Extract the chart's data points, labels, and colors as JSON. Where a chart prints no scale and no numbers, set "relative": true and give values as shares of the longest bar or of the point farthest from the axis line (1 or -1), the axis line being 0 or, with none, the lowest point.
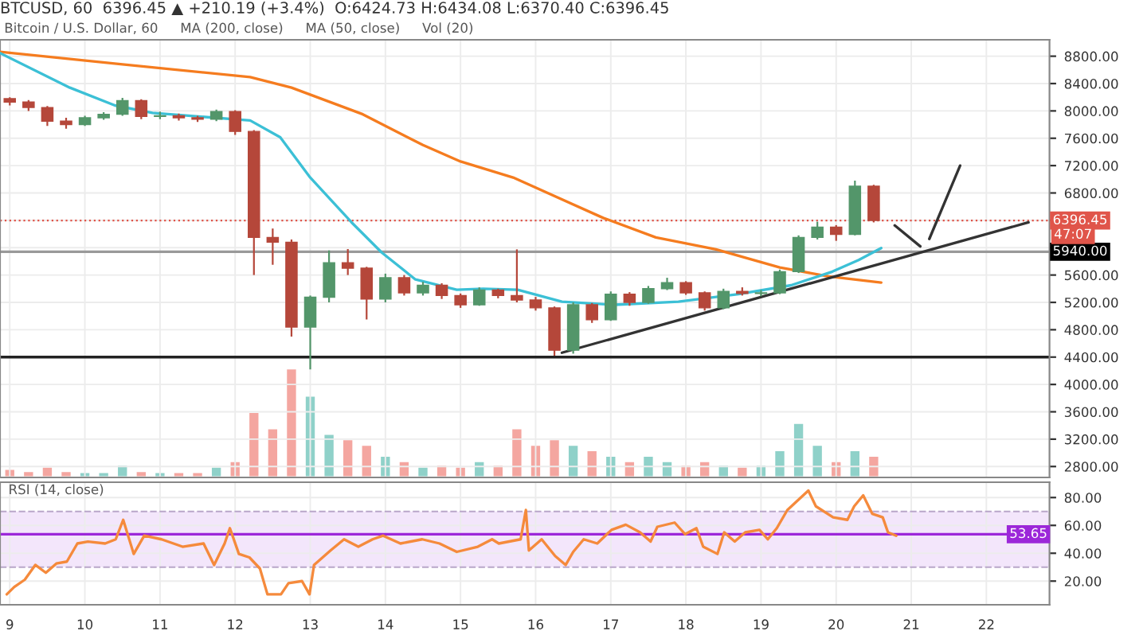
{
  "chart_data": [
    {
      "type": "candlestick",
      "title": "BTCUSD, 60  6396.45 ▲ +210.19 (+3.4%)  O:6424.73 H:6434.08 L:6370.40 C:6396.45",
      "annotations": [
        "Bitcoin / U.S. Dollar, 60",
        "MA (200, close)",
        "MA (50, close)",
        "Vol (20)",
        {
          "text": "47:07",
          "x": 22.84,
          "y": 6396.45
        }
      ],
      "x": [
        9.0,
        9.25,
        9.5,
        9.75,
        10.0,
        10.25,
        10.5,
        10.75,
        11.0,
        11.25,
        11.5,
        11.75,
        12.0,
        12.25,
        12.5,
        12.75,
        13.0,
        13.25,
        13.5,
        13.75,
        14.0,
        14.25,
        14.5,
        14.75,
        15.0,
        15.25,
        15.5,
        15.75,
        16.0,
        16.25,
        16.5,
        16.75,
        17.0,
        17.25,
        17.5,
        17.75,
        18.0,
        18.25,
        18.5,
        18.75,
        19.0,
        19.25,
        19.5,
        19.75,
        20.0,
        20.25,
        20.5
      ],
      "ohlc": [
        [
          8180,
          8200,
          8080,
          8130
        ],
        [
          8130,
          8160,
          8000,
          8050
        ],
        [
          8050,
          8070,
          7780,
          7850
        ],
        [
          7850,
          7900,
          7740,
          7800
        ],
        [
          7800,
          7930,
          7780,
          7900
        ],
        [
          7900,
          7980,
          7870,
          7950
        ],
        [
          7950,
          8190,
          7930,
          8150
        ],
        [
          8150,
          8170,
          7880,
          7920
        ],
        [
          7920,
          7990,
          7880,
          7930
        ],
        [
          7930,
          7960,
          7860,
          7900
        ],
        [
          7900,
          7930,
          7840,
          7880
        ],
        [
          7880,
          8020,
          7850,
          7990
        ],
        [
          7990,
          8010,
          7650,
          7700
        ],
        [
          7700,
          7720,
          5600,
          6150
        ],
        [
          6150,
          6280,
          5750,
          6080
        ],
        [
          6080,
          6120,
          4700,
          4840
        ],
        [
          4840,
          5300,
          4220,
          5275
        ],
        [
          5275,
          5960,
          5200,
          5780
        ],
        [
          5780,
          5980,
          5600,
          5700
        ],
        [
          5700,
          5720,
          4950,
          5250
        ],
        [
          5250,
          5620,
          5200,
          5560
        ],
        [
          5560,
          5600,
          5300,
          5340
        ],
        [
          5340,
          5500,
          5300,
          5450
        ],
        [
          5450,
          5480,
          5250,
          5300
        ],
        [
          5300,
          5330,
          5120,
          5165
        ],
        [
          5165,
          5420,
          5150,
          5380
        ],
        [
          5380,
          5400,
          5260,
          5300
        ],
        [
          5300,
          5975,
          5200,
          5235
        ],
        [
          5235,
          5280,
          5080,
          5120
        ],
        [
          5120,
          5140,
          4420,
          4500
        ],
        [
          4500,
          5200,
          4450,
          5165
        ],
        [
          5165,
          5190,
          4900,
          4945
        ],
        [
          4945,
          5360,
          4930,
          5320
        ],
        [
          5320,
          5350,
          5150,
          5200
        ],
        [
          5200,
          5440,
          5180,
          5400
        ],
        [
          5400,
          5560,
          5380,
          5490
        ],
        [
          5490,
          5510,
          5310,
          5340
        ],
        [
          5340,
          5360,
          5080,
          5120
        ],
        [
          5120,
          5400,
          5100,
          5360
        ],
        [
          5360,
          5420,
          5300,
          5330
        ],
        [
          5330,
          5380,
          5290,
          5340
        ],
        [
          5340,
          5680,
          5320,
          5650
        ],
        [
          5650,
          6180,
          5630,
          6150
        ],
        [
          6150,
          6380,
          6120,
          6300
        ],
        [
          6300,
          6330,
          6100,
          6195
        ],
        [
          6195,
          6980,
          6180,
          6900
        ],
        [
          6900,
          6920,
          6370,
          6396.45
        ]
      ],
      "colors": [
        "#b5473a",
        "#b5473a",
        "#b5473a",
        "#b5473a",
        "#53966a",
        "#53966a",
        "#53966a",
        "#b5473a",
        "#53966a",
        "#b5473a",
        "#b5473a",
        "#53966a",
        "#b5473a",
        "#b5473a",
        "#b5473a",
        "#b5473a",
        "#53966a",
        "#53966a",
        "#b5473a",
        "#b5473a",
        "#53966a",
        "#b5473a",
        "#53966a",
        "#b5473a",
        "#b5473a",
        "#53966a",
        "#b5473a",
        "#b5473a",
        "#b5473a",
        "#b5473a",
        "#53966a",
        "#b5473a",
        "#53966a",
        "#b5473a",
        "#53966a",
        "#53966a",
        "#b5473a",
        "#b5473a",
        "#53966a",
        "#b5473a",
        "#53966a",
        "#53966a",
        "#53966a",
        "#53966a",
        "#b5473a",
        "#53966a",
        "#b5473a"
      ],
      "series": [
        {
          "type": "line",
          "color": "#f57c1f",
          "x": [
            8.87,
            10.5,
            12.2,
            12.75,
            13.7,
            14.5,
            15.0,
            15.7,
            16.9,
            17.6,
            18.4,
            19.25,
            19.9,
            20.6
          ],
          "values": [
            8865,
            8680,
            8495,
            8340,
            7950,
            7500,
            7260,
            7026,
            6435,
            6150,
            5975,
            5710,
            5580,
            5490
          ]
        },
        {
          "type": "line",
          "color": "#3cc0d6",
          "x": [
            8.87,
            9.8,
            10.4,
            10.9,
            12.2,
            12.6,
            13.0,
            13.55,
            13.95,
            14.4,
            14.95,
            15.3,
            15.76,
            16.35,
            17.05,
            17.9,
            18.7,
            19.4,
            19.95,
            20.3,
            20.6
          ],
          "values": [
            8845,
            8340,
            8080,
            7970,
            7860,
            7615,
            7025,
            6370,
            5930,
            5535,
            5385,
            5400,
            5385,
            5210,
            5165,
            5210,
            5320,
            5450,
            5650,
            5820,
            5995
          ]
        },
        {
          "type": "line",
          "color": "#333333",
          "x": [
            16.35,
            22.56
          ],
          "values": [
            4464,
            6370
          ]
        },
        {
          "type": "line",
          "color": "#333333",
          "x": [
            20.78,
            21.12,
            21.18,
            21.24,
            21.65
          ],
          "values": [
            6325,
            6019,
            null,
            6128,
            7200
          ]
        }
      ],
      "xlim": [
        8.87,
        22.84
      ],
      "xticks": [
        9,
        10,
        11,
        12,
        13,
        14,
        15,
        16,
        17,
        18,
        19,
        20,
        21,
        22
      ],
      "ylim": [
        2640,
        9040
      ],
      "yticks": [
        {
          "value": 2800,
          "label": "2800.00"
        },
        {
          "value": 3200,
          "label": "3200.00"
        },
        {
          "value": 3600,
          "label": "3600.00"
        },
        {
          "value": 4000,
          "label": "4000.00"
        },
        {
          "value": 4400,
          "label": "4400.00"
        },
        {
          "value": 4800,
          "label": "4800.00"
        },
        {
          "value": 5200,
          "label": "5200.00"
        },
        {
          "value": 5600,
          "label": "5600.00"
        },
        {
          "value": 6000,
          "label": null
        },
        {
          "value": 6400,
          "label": null
        },
        {
          "value": 6800,
          "label": "6800.00"
        },
        {
          "value": 7200,
          "label": "7200.00"
        },
        {
          "value": 7600,
          "label": "7600.00"
        },
        {
          "value": 8000,
          "label": "8000.00"
        },
        {
          "value": 8400,
          "label": "8400.00"
        },
        {
          "value": 8800,
          "label": "8800.00"
        }
      ],
      "tick_labels": "y",
      "grid": true,
      "ref_lines": [
        {
          "axis": "y",
          "value": 6396.45,
          "label": "6396.45",
          "color": "#e0554a",
          "line_style": "dotted"
        },
        {
          "axis": "y",
          "value": 5940,
          "label": "5940.00",
          "color": "#999999"
        },
        {
          "axis": "y",
          "value": 4400,
          "color": "#222222"
        }
      ]
    },
    {
      "type": "bar",
      "relative": true,
      "tick_labels": false,
      "categories": [
        null,
        null,
        null,
        null,
        null,
        null,
        null,
        null,
        null,
        null,
        null,
        null,
        null,
        null,
        null,
        null,
        null,
        null,
        null,
        null,
        null,
        null,
        null,
        null,
        null,
        null,
        null,
        null,
        null,
        null,
        null,
        null,
        null,
        null,
        null,
        null,
        null,
        null,
        null,
        null,
        null,
        null,
        null,
        null,
        null,
        null,
        null
      ],
      "values": [
        0.08,
        0.06,
        0.1,
        0.06,
        0.05,
        0.05,
        0.12,
        0.06,
        0.05,
        0.05,
        0.05,
        0.1,
        0.15,
        0.6,
        0.45,
        1,
        0.75,
        0.4,
        0.35,
        0.3,
        0.2,
        0.15,
        0.1,
        0.12,
        0.1,
        0.15,
        0.12,
        0.45,
        0.3,
        0.35,
        0.3,
        0.25,
        0.2,
        0.15,
        0.2,
        0.15,
        0.12,
        0.15,
        0.12,
        0.1,
        0.12,
        0.25,
        0.5,
        0.3,
        0.15,
        0.25,
        0.2
      ],
      "colors": [
        "#f4a6a0",
        "#f4a6a0",
        "#f4a6a0",
        "#f4a6a0",
        "#8fd1c9",
        "#8fd1c9",
        "#8fd1c9",
        "#f4a6a0",
        "#8fd1c9",
        "#f4a6a0",
        "#f4a6a0",
        "#8fd1c9",
        "#f4a6a0",
        "#f4a6a0",
        "#f4a6a0",
        "#f4a6a0",
        "#8fd1c9",
        "#8fd1c9",
        "#f4a6a0",
        "#f4a6a0",
        "#8fd1c9",
        "#f4a6a0",
        "#8fd1c9",
        "#f4a6a0",
        "#f4a6a0",
        "#8fd1c9",
        "#f4a6a0",
        "#f4a6a0",
        "#f4a6a0",
        "#f4a6a0",
        "#8fd1c9",
        "#f4a6a0",
        "#8fd1c9",
        "#f4a6a0",
        "#8fd1c9",
        "#8fd1c9",
        "#f4a6a0",
        "#f4a6a0",
        "#8fd1c9",
        "#f4a6a0",
        "#8fd1c9",
        "#8fd1c9",
        "#8fd1c9",
        "#8fd1c9",
        "#f4a6a0",
        "#8fd1c9",
        "#f4a6a0"
      ]
    },
    {
      "type": "line",
      "color": "#f58a3c",
      "annotations": [
        "RSI (14, close)"
      ],
      "x": [
        8.96,
        9.06,
        9.2,
        9.34,
        9.48,
        9.62,
        9.76,
        9.9,
        10.04,
        10.27,
        10.41,
        10.51,
        10.65,
        10.79,
        11.02,
        11.3,
        11.58,
        11.72,
        11.86,
        11.93,
        12.05,
        12.19,
        12.33,
        12.43,
        12.61,
        12.71,
        12.89,
        12.99,
        13.05,
        13.27,
        13.45,
        13.64,
        13.83,
        13.97,
        14.2,
        14.49,
        14.72,
        14.95,
        15.23,
        15.42,
        15.51,
        15.8,
        15.87,
        15.91,
        16.08,
        16.26,
        16.4,
        16.5,
        16.64,
        16.82,
        17.01,
        17.2,
        17.39,
        17.53,
        17.62,
        17.85,
        17.99,
        18.14,
        18.23,
        18.42,
        18.51,
        18.65,
        18.79,
        18.98,
        19.09,
        19.21,
        19.35,
        19.49,
        19.63,
        19.73,
        19.96,
        20.15,
        20.24,
        20.36,
        20.48,
        20.62,
        20.69,
        20.8
      ],
      "values": [
        10.5,
        15.8,
        21,
        31.6,
        26,
        32.6,
        34,
        47,
        48.4,
        47,
        50,
        64,
        39.5,
        52.6,
        50,
        44.7,
        47,
        31.6,
        47,
        58,
        39.5,
        37,
        29,
        10.5,
        10.5,
        18.5,
        20,
        10.5,
        31.6,
        42,
        50,
        44.7,
        50,
        52.6,
        47,
        50,
        47,
        41,
        44.7,
        50,
        47,
        50,
        71,
        42,
        50,
        38,
        31.6,
        41,
        50,
        47,
        56.8,
        60.5,
        55,
        48.4,
        59,
        62,
        53.7,
        58,
        44.7,
        39.5,
        55,
        48.4,
        55,
        56.8,
        50,
        58,
        71,
        78,
        85,
        73.7,
        65.8,
        64,
        73.7,
        81.6,
        68.4,
        65.8,
        55,
        52.6
      ],
      "xlim": [
        8.87,
        22.84
      ],
      "xticks": [
        9,
        10,
        11,
        12,
        13,
        14,
        15,
        16,
        17,
        18,
        19,
        20,
        21,
        22
      ],
      "ylim": [
        3,
        91
      ],
      "yticks": [
        {
          "value": 20,
          "label": "20.00"
        },
        {
          "value": 40,
          "label": "40.00"
        },
        {
          "value": 60,
          "label": "60.00"
        },
        {
          "value": 80,
          "label": "80.00"
        }
      ],
      "grid": true,
      "bands": [
        {
          "axis": "y",
          "from": 30,
          "to": 70,
          "color": "#f3e6fb"
        }
      ],
      "ref_lines": [
        {
          "axis": "y",
          "value": 70,
          "color": "#b9a6c9",
          "line_style": "dashed"
        },
        {
          "axis": "y",
          "value": 30,
          "color": "#b9a6c9",
          "line_style": "dashed"
        },
        {
          "axis": "y",
          "value": 53.65,
          "label": "53.65",
          "color": "#9c27d9"
        }
      ]
    }
  ]
}
